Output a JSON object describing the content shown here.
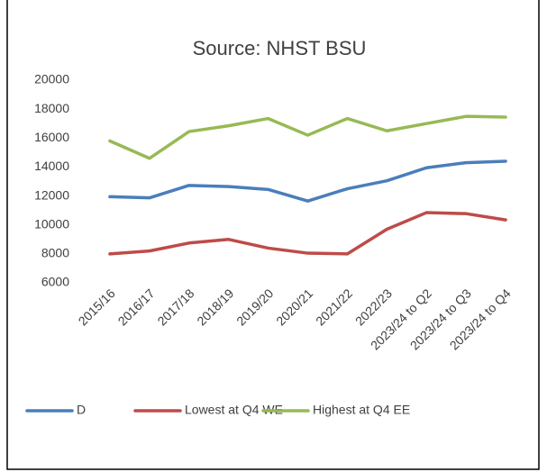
{
  "chart_data": {
    "type": "line",
    "title": "Source: NHST BSU",
    "categories": [
      "2015/16",
      "2016/17",
      "2017/18",
      "2018/19",
      "2019/20",
      "2020/21",
      "2021/22",
      "2022/23",
      "2023/24 to Q2",
      "2023/24 to Q3",
      "2023/24 to Q4"
    ],
    "series": [
      {
        "name": "D",
        "color": "#4a7ebb",
        "values": [
          11950,
          11870,
          12730,
          12650,
          12450,
          11650,
          12500,
          13050,
          13950,
          14300,
          14400
        ]
      },
      {
        "name": "Lowest at Q4 WE",
        "color": "#be4b48",
        "values": [
          8000,
          8200,
          8750,
          9000,
          8400,
          8050,
          8000,
          9700,
          10850,
          10780,
          10350
        ]
      },
      {
        "name": "Highest at Q4 EE",
        "color": "#98b954",
        "values": [
          15800,
          14600,
          16450,
          16850,
          17350,
          16200,
          17350,
          16500,
          17000,
          17500,
          17450
        ]
      }
    ],
    "ylim": [
      6000,
      20000
    ],
    "yticks": [
      6000,
      8000,
      10000,
      12000,
      14000,
      16000,
      18000,
      20000
    ],
    "grid": false,
    "legend": "bottom"
  }
}
